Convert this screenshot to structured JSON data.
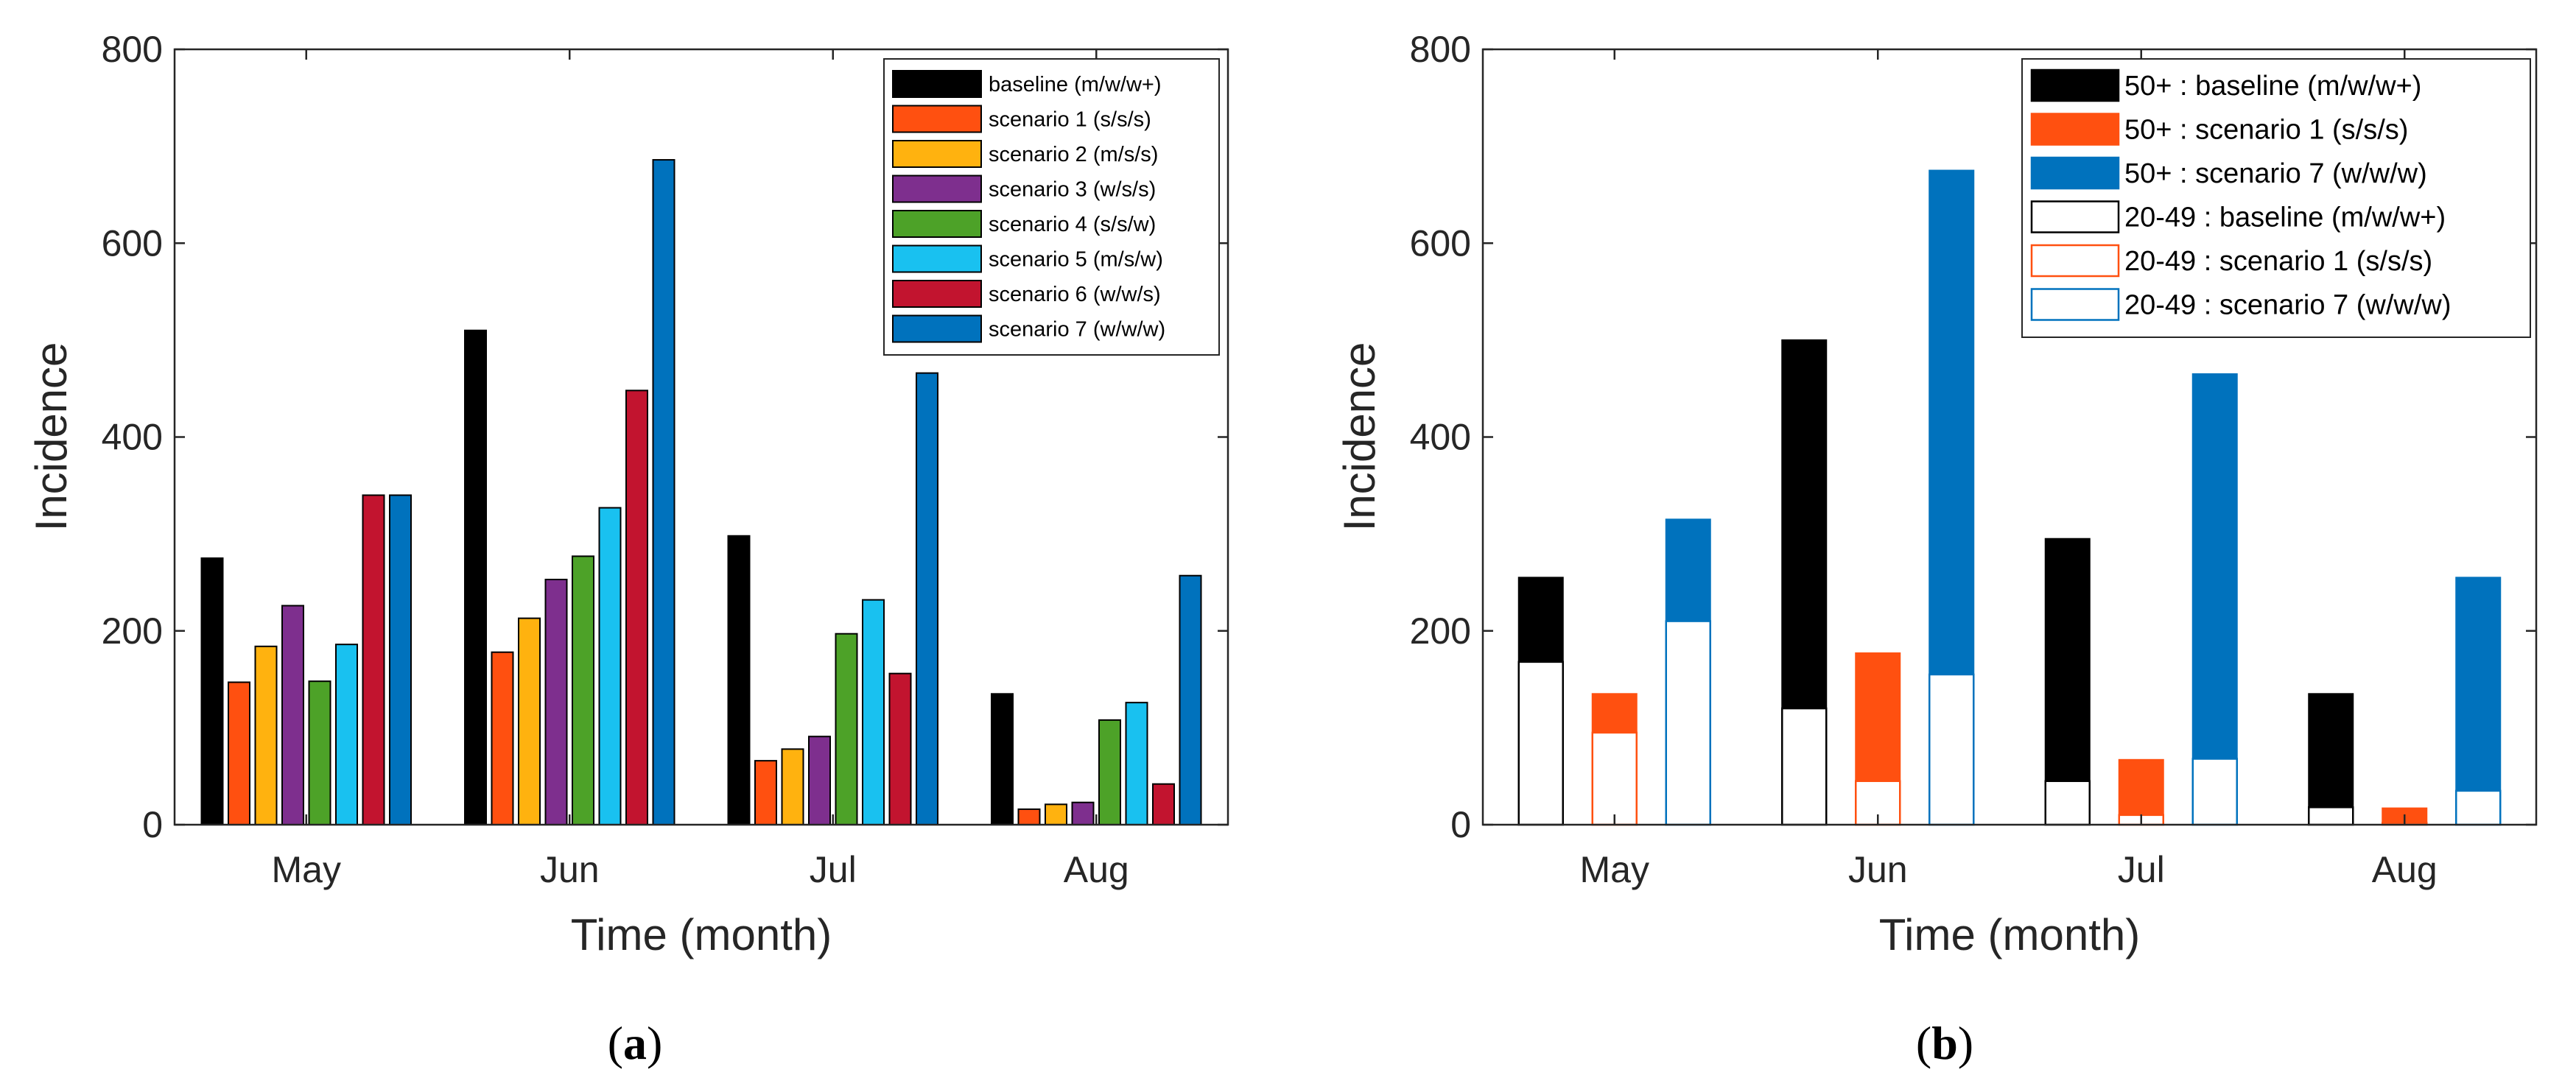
{
  "panel_a": {
    "label_open": "(",
    "label_letter": "a",
    "label_close": ")",
    "chart_data": {
      "type": "bar",
      "title": "",
      "xlabel": "Time (month)",
      "ylabel": "Incidence",
      "ylim": [
        0,
        800
      ],
      "yticks": [
        "0",
        "200",
        "400",
        "600",
        "800"
      ],
      "categories": [
        "May",
        "Jun",
        "Jul",
        "Aug"
      ],
      "legend_position": "top-right",
      "series": [
        {
          "name": "baseline (m/w/w+)",
          "color": "#000000",
          "values": [
            275,
            510,
            298,
            135
          ]
        },
        {
          "name": "scenario 1 (s/s/s)",
          "color": "#FF5010",
          "values": [
            147,
            178,
            66,
            16
          ]
        },
        {
          "name": "scenario 2 (m/s/s)",
          "color": "#FFB20F",
          "values": [
            184,
            213,
            78,
            21
          ]
        },
        {
          "name": "scenario 3 (w/s/s)",
          "color": "#7E2F8E",
          "values": [
            226,
            253,
            91,
            23
          ]
        },
        {
          "name": "scenario 4 (s/s/w)",
          "color": "#4DA228",
          "values": [
            148,
            277,
            197,
            108
          ]
        },
        {
          "name": "scenario 5 (m/s/w)",
          "color": "#19C1F0",
          "values": [
            186,
            327,
            232,
            126
          ]
        },
        {
          "name": "scenario 6 (w/w/s)",
          "color": "#C2142F",
          "values": [
            340,
            448,
            156,
            42
          ]
        },
        {
          "name": "scenario 7 (w/w/w)",
          "color": "#0072BD",
          "values": [
            340,
            686,
            466,
            257
          ]
        }
      ]
    }
  },
  "panel_b": {
    "label_open": "(",
    "label_letter": "b",
    "label_close": ")",
    "chart_data": {
      "type": "bar",
      "stacked": true,
      "title": "",
      "xlabel": "Time (month)",
      "ylabel": "Incidence",
      "ylim": [
        0,
        800
      ],
      "yticks": [
        "0",
        "200",
        "400",
        "600",
        "800"
      ],
      "categories": [
        "May",
        "Jun",
        "Jul",
        "Aug"
      ],
      "legend_position": "top-right",
      "groups": [
        {
          "color": "#000000",
          "total": [
            255,
            500,
            295,
            135
          ],
          "age_20_49": [
            168,
            120,
            45,
            18
          ]
        },
        {
          "color": "#FF5010",
          "total": [
            135,
            177,
            67,
            17
          ],
          "age_20_49": [
            95,
            45,
            10,
            2
          ]
        },
        {
          "color": "#0072BD",
          "total": [
            315,
            675,
            465,
            255
          ],
          "age_20_49": [
            210,
            155,
            68,
            35
          ]
        }
      ],
      "legend": [
        {
          "name": "50+ : baseline (m/w/w+)",
          "color": "#000000",
          "filled": true
        },
        {
          "name": "50+ : scenario 1 (s/s/s)",
          "color": "#FF5010",
          "filled": true
        },
        {
          "name": "50+ : scenario 7 (w/w/w)",
          "color": "#0072BD",
          "filled": true
        },
        {
          "name": "20-49 : baseline (m/w/w+)",
          "color": "#000000",
          "filled": false
        },
        {
          "name": "20-49 : scenario 1 (s/s/s)",
          "color": "#FF5010",
          "filled": false
        },
        {
          "name": "20-49 : scenario 7 (w/w/w)",
          "color": "#0072BD",
          "filled": false
        }
      ]
    }
  }
}
